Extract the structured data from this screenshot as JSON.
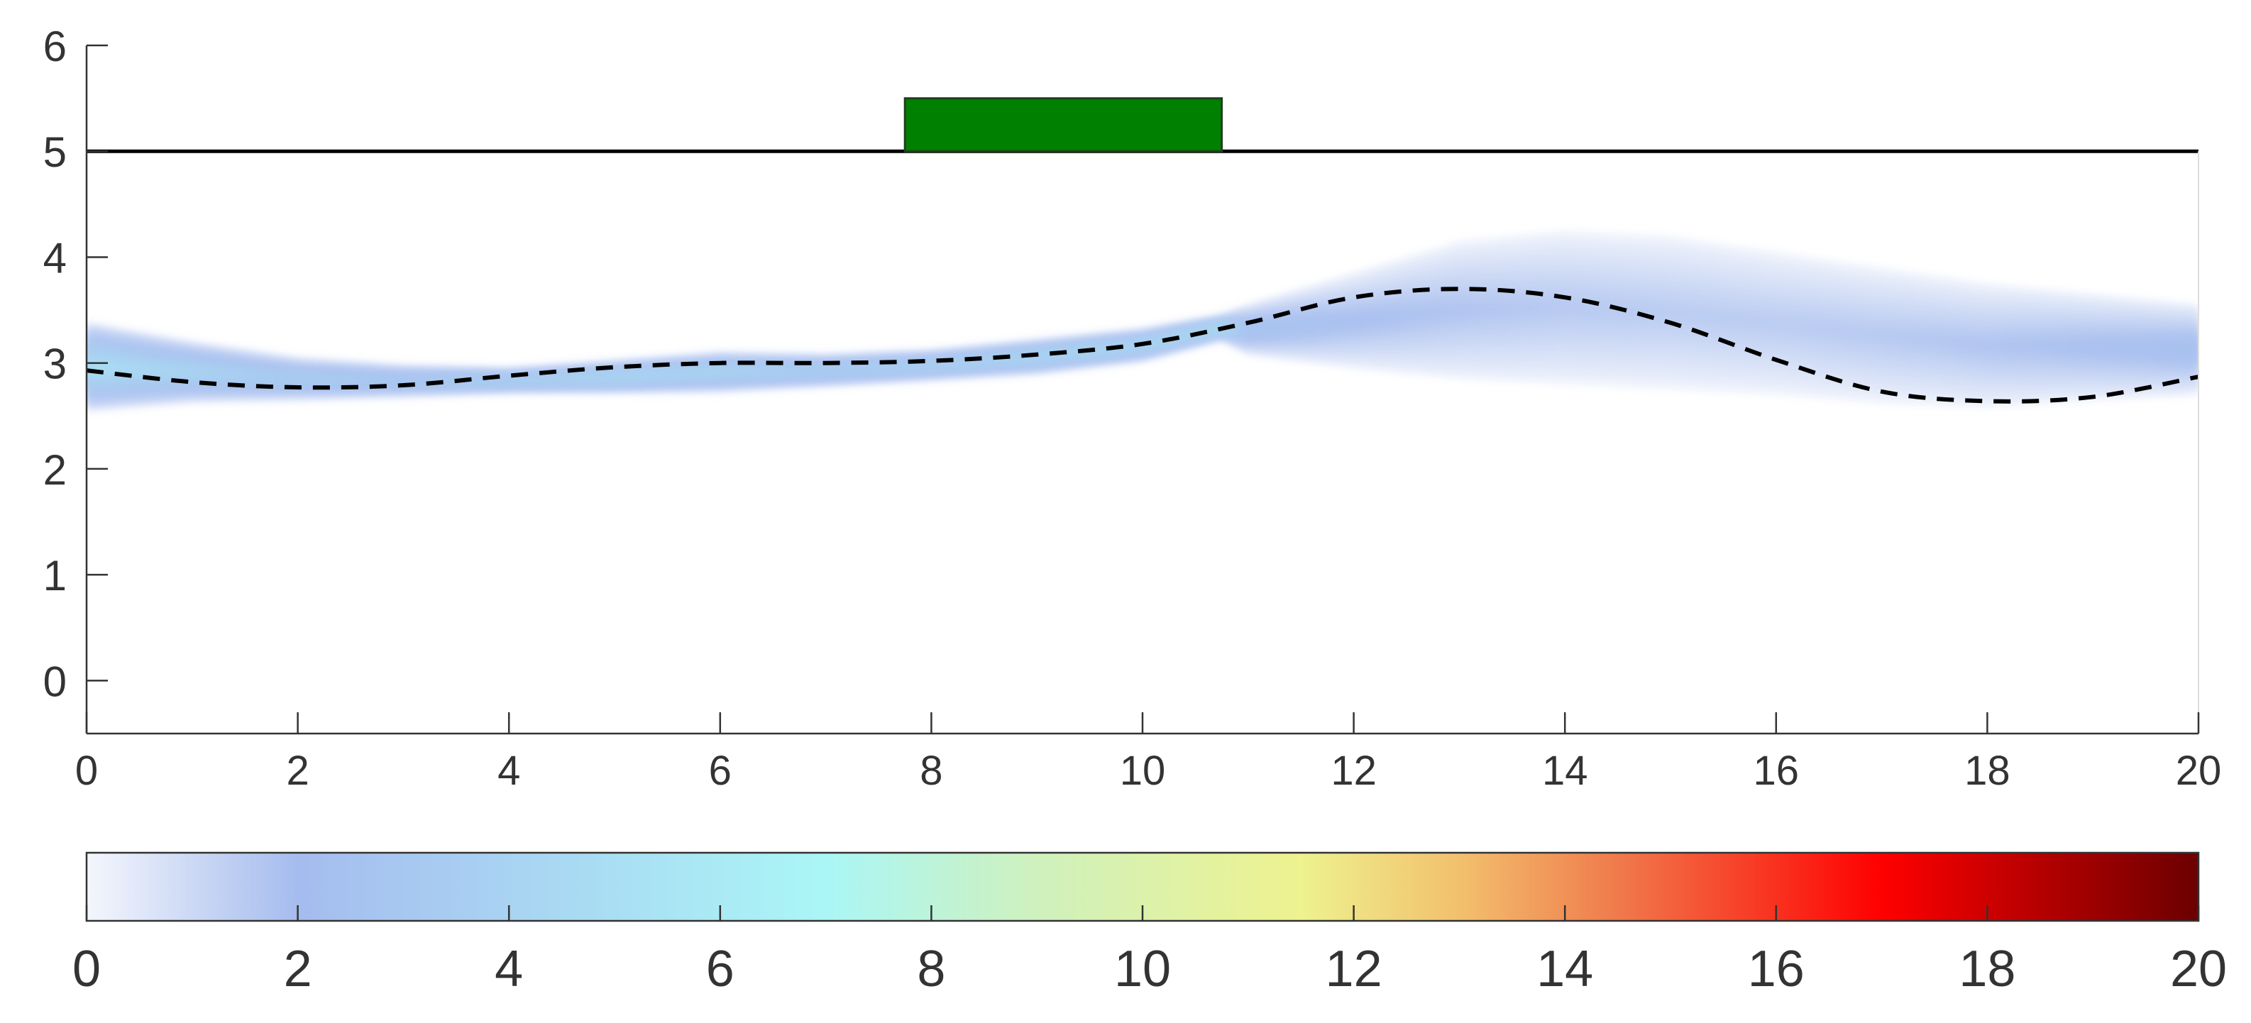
{
  "colors": {
    "axis": "#333333",
    "wall": "#000000",
    "block_fill": "#008000",
    "block_edge": "#1f3f1f",
    "mean_path": "#000000"
  },
  "chart_data": [
    {
      "type": "heatmap",
      "title": "",
      "xlabel": "",
      "ylabel": "",
      "xlim": [
        0,
        20
      ],
      "ylim": [
        -0.5,
        6
      ],
      "x_ticks": [
        0,
        2,
        4,
        6,
        8,
        10,
        12,
        14,
        16,
        18,
        20
      ],
      "y_ticks": [
        0,
        1,
        2,
        3,
        4,
        5,
        6
      ],
      "grid": false,
      "wall": {
        "y": 5,
        "x_range": [
          0,
          20
        ]
      },
      "block": {
        "x_range": [
          7.75,
          10.75
        ],
        "y_range": [
          5,
          5.5
        ]
      },
      "density_band": {
        "x": [
          0,
          1,
          2,
          3,
          4,
          5,
          6,
          7,
          8,
          9,
          10,
          10.75,
          11,
          12,
          13,
          14,
          15,
          16,
          17,
          18,
          19,
          20
        ],
        "lower": [
          2.55,
          2.63,
          2.65,
          2.68,
          2.72,
          2.72,
          2.73,
          2.78,
          2.84,
          2.9,
          3.02,
          3.22,
          3.08,
          2.95,
          2.85,
          2.8,
          2.75,
          2.7,
          2.62,
          2.58,
          2.65,
          2.7
        ],
        "upper": [
          3.38,
          3.2,
          3.05,
          2.98,
          2.95,
          3.02,
          3.1,
          3.08,
          3.12,
          3.22,
          3.32,
          3.45,
          3.55,
          3.85,
          4.15,
          4.25,
          4.2,
          4.05,
          3.9,
          3.75,
          3.65,
          3.55
        ],
        "core_peak": [
          5.5,
          4.5,
          3.8,
          3.5,
          4.2,
          4.8,
          4.5,
          4.0,
          4.3,
          4.6,
          4.8,
          5.2,
          3.0,
          2.2,
          1.9,
          1.7,
          1.6,
          1.6,
          1.7,
          1.9,
          2.2,
          2.6
        ]
      },
      "mean_path": {
        "style": "dashed",
        "x": [
          0,
          1,
          2,
          3,
          4,
          5,
          6,
          7,
          8,
          9,
          10,
          11,
          12,
          13,
          14,
          15,
          16,
          17,
          18,
          19,
          20
        ],
        "y": [
          2.93,
          2.82,
          2.77,
          2.79,
          2.88,
          2.96,
          3.0,
          3.0,
          3.02,
          3.08,
          3.18,
          3.38,
          3.62,
          3.7,
          3.62,
          3.38,
          3.03,
          2.73,
          2.64,
          2.68,
          2.87
        ]
      }
    },
    {
      "type": "colorbar",
      "range": [
        0,
        20
      ],
      "ticks": [
        0,
        2,
        4,
        6,
        8,
        10,
        12,
        14,
        16,
        18,
        20
      ],
      "colormap": [
        {
          "v": 0,
          "c": "#f4f6fc"
        },
        {
          "v": 2,
          "c": "#a5bcee"
        },
        {
          "v": 4,
          "c": "#a9d3f2"
        },
        {
          "v": 7,
          "c": "#aaf6f6"
        },
        {
          "v": 9,
          "c": "#cff1bd"
        },
        {
          "v": 11.5,
          "c": "#eef28f"
        },
        {
          "v": 13,
          "c": "#f2c06d"
        },
        {
          "v": 14.5,
          "c": "#f07a4c"
        },
        {
          "v": 17,
          "c": "#ff0000"
        },
        {
          "v": 20,
          "c": "#6b0000"
        }
      ]
    }
  ]
}
